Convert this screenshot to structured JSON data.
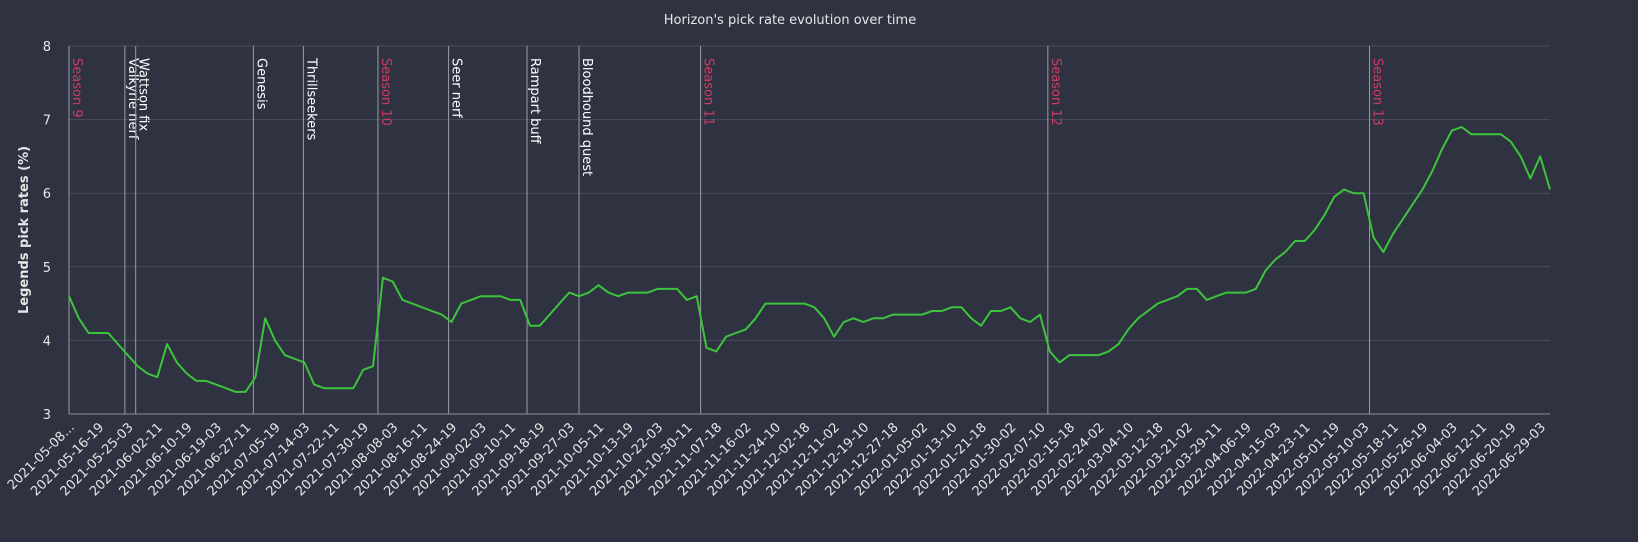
{
  "chart_data": {
    "type": "line",
    "title": "Horizon's pick rate evolution over time",
    "y_label": "Legends pick rates (%)",
    "categories": [
      "2021-05-08...",
      null,
      null,
      "2021-05-16-19",
      null,
      null,
      "2021-05-25-03",
      null,
      null,
      "2021-06-02-11",
      null,
      null,
      "2021-06-10-19",
      null,
      null,
      "2021-06-19-03",
      null,
      null,
      "2021-06-27-11",
      null,
      null,
      "2021-07-05-19",
      null,
      null,
      "2021-07-14-03",
      null,
      null,
      "2021-07-22-11",
      null,
      null,
      "2021-07-30-19",
      null,
      null,
      "2021-08-08-03",
      null,
      null,
      "2021-08-16-11",
      null,
      null,
      "2021-08-24-19",
      null,
      null,
      "2021-09-02-03",
      null,
      null,
      "2021-09-10-11",
      null,
      null,
      "2021-09-18-19",
      null,
      null,
      "2021-09-27-03",
      null,
      null,
      "2021-10-05-11",
      null,
      null,
      "2021-10-13-19",
      null,
      null,
      "2021-10-22-03",
      null,
      null,
      "2021-10-30-11",
      null,
      null,
      "2021-11-07-18",
      null,
      null,
      "2021-11-16-02",
      null,
      null,
      "2021-11-24-10",
      null,
      null,
      "2021-12-02-18",
      null,
      null,
      "2021-12-11-02",
      null,
      null,
      "2021-12-19-10",
      null,
      null,
      "2021-12-27-18",
      null,
      null,
      "2022-01-05-02",
      null,
      null,
      "2022-01-13-10",
      null,
      null,
      "2022-01-21-18",
      null,
      null,
      "2022-01-30-02",
      null,
      null,
      "2022-02-07-10",
      null,
      null,
      "2022-02-15-18",
      null,
      null,
      "2022-02-24-02",
      null,
      null,
      "2022-03-04-10",
      null,
      null,
      "2022-03-12-18",
      null,
      null,
      "2022-03-21-02",
      null,
      null,
      "2022-03-29-11",
      null,
      null,
      "2022-04-06-19",
      null,
      null,
      "2022-04-15-03",
      null,
      null,
      "2022-04-23-11",
      null,
      null,
      "2022-05-01-19",
      null,
      null,
      "2022-05-10-03",
      null,
      null,
      "2022-05-18-11",
      null,
      null,
      "2022-05-26-19",
      null,
      null,
      "2022-06-04-03",
      null,
      null,
      "2022-06-12-11",
      null,
      null,
      "2022-06-20-19",
      null,
      null,
      "2022-06-29-03",
      null
    ],
    "series": [
      {
        "color": "#3cc43c",
        "values": [
          4.6,
          4.3,
          4.1,
          4.1,
          4.1,
          3.95,
          3.8,
          3.65,
          3.55,
          3.5,
          3.95,
          3.7,
          3.55,
          3.45,
          3.45,
          3.4,
          3.35,
          3.3,
          3.3,
          3.5,
          4.3,
          4.0,
          3.8,
          3.75,
          3.7,
          3.4,
          3.35,
          3.35,
          3.35,
          3.35,
          3.6,
          3.65,
          4.85,
          4.8,
          4.55,
          4.5,
          4.45,
          4.4,
          4.35,
          4.25,
          4.5,
          4.55,
          4.6,
          4.6,
          4.6,
          4.55,
          4.55,
          4.2,
          4.2,
          4.35,
          4.5,
          4.65,
          4.6,
          4.65,
          4.75,
          4.65,
          4.6,
          4.65,
          4.65,
          4.65,
          4.7,
          4.7,
          4.7,
          4.55,
          4.6,
          3.9,
          3.85,
          4.05,
          4.1,
          4.15,
          4.3,
          4.5,
          4.5,
          4.5,
          4.5,
          4.5,
          4.45,
          4.3,
          4.05,
          4.25,
          4.3,
          4.25,
          4.3,
          4.3,
          4.35,
          4.35,
          4.35,
          4.35,
          4.4,
          4.4,
          4.45,
          4.45,
          4.3,
          4.2,
          4.4,
          4.4,
          4.45,
          4.3,
          4.25,
          4.35,
          3.85,
          3.7,
          3.8,
          3.8,
          3.8,
          3.8,
          3.85,
          3.95,
          4.15,
          4.3,
          4.4,
          4.5,
          4.55,
          4.6,
          4.7,
          4.7,
          4.55,
          4.6,
          4.65,
          4.65,
          4.65,
          4.7,
          4.95,
          5.1,
          5.2,
          5.35,
          5.35,
          5.5,
          5.7,
          5.95,
          6.05,
          6.0,
          6.0,
          5.4,
          5.2,
          5.45,
          5.65,
          5.85,
          6.05,
          6.3,
          6.6,
          6.85,
          6.9,
          6.8,
          6.8,
          6.8,
          6.8,
          6.7,
          6.5,
          6.2,
          6.5,
          6.05
        ]
      }
    ],
    "events": [
      {
        "label": "Season 9",
        "x": 0,
        "color": "#d23a63"
      },
      {
        "label": "Valkyrie nerf",
        "x": 5.7,
        "color": "#ffffff"
      },
      {
        "label": "Wattson fix",
        "x": 6.8,
        "color": "#ffffff"
      },
      {
        "label": "Genesis",
        "x": 18.8,
        "color": "#ffffff"
      },
      {
        "label": "Thrillseekers",
        "x": 23.9,
        "color": "#ffffff"
      },
      {
        "label": "Season 10",
        "x": 31.5,
        "color": "#d23a63"
      },
      {
        "label": "Seer nerf",
        "x": 38.7,
        "color": "#ffffff"
      },
      {
        "label": "Rampart buff",
        "x": 46.7,
        "color": "#ffffff"
      },
      {
        "label": "Bloodhound quest",
        "x": 52.0,
        "color": "#ffffff"
      },
      {
        "label": "Season 11",
        "x": 64.4,
        "color": "#d23a63"
      },
      {
        "label": "Season 12",
        "x": 99.8,
        "color": "#d23a63"
      },
      {
        "label": "Season 13",
        "x": 132.6,
        "color": "#d23a63"
      }
    ],
    "ylim": [
      3,
      8
    ],
    "yticks": [
      3,
      4,
      5,
      6,
      7,
      8
    ],
    "grid": true
  }
}
